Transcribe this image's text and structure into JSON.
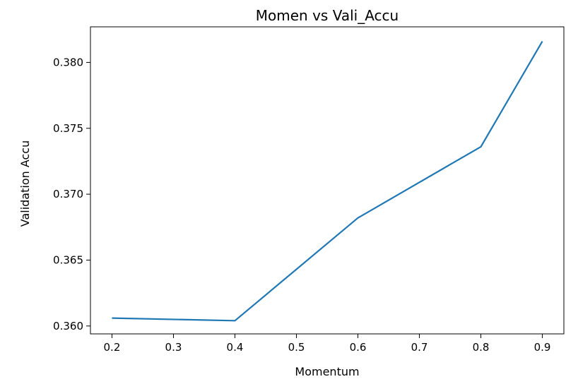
{
  "chart_data": {
    "type": "line",
    "title": "Momen vs Vali_Accu",
    "xlabel": "Momentum",
    "ylabel": "Validation Accu",
    "x_ticks": [
      0.2,
      0.3,
      0.4,
      0.5,
      0.6,
      0.7,
      0.8,
      0.9
    ],
    "x_tick_labels": [
      "0.2",
      "0.3",
      "0.4",
      "0.5",
      "0.6",
      "0.7",
      "0.8",
      "0.9"
    ],
    "y_ticks": [
      0.36,
      0.365,
      0.37,
      0.375,
      0.38
    ],
    "y_tick_labels": [
      "0.360",
      "0.365",
      "0.370",
      "0.375",
      "0.380"
    ],
    "xlim": [
      0.165,
      0.935
    ],
    "ylim": [
      0.3594,
      0.3827
    ],
    "grid": false,
    "series": [
      {
        "color": "#1f77b4",
        "x": [
          0.2,
          0.4,
          0.6,
          0.8,
          0.9
        ],
        "y": [
          0.3606,
          0.3604,
          0.3682,
          0.3736,
          0.3816
        ]
      }
    ]
  }
}
